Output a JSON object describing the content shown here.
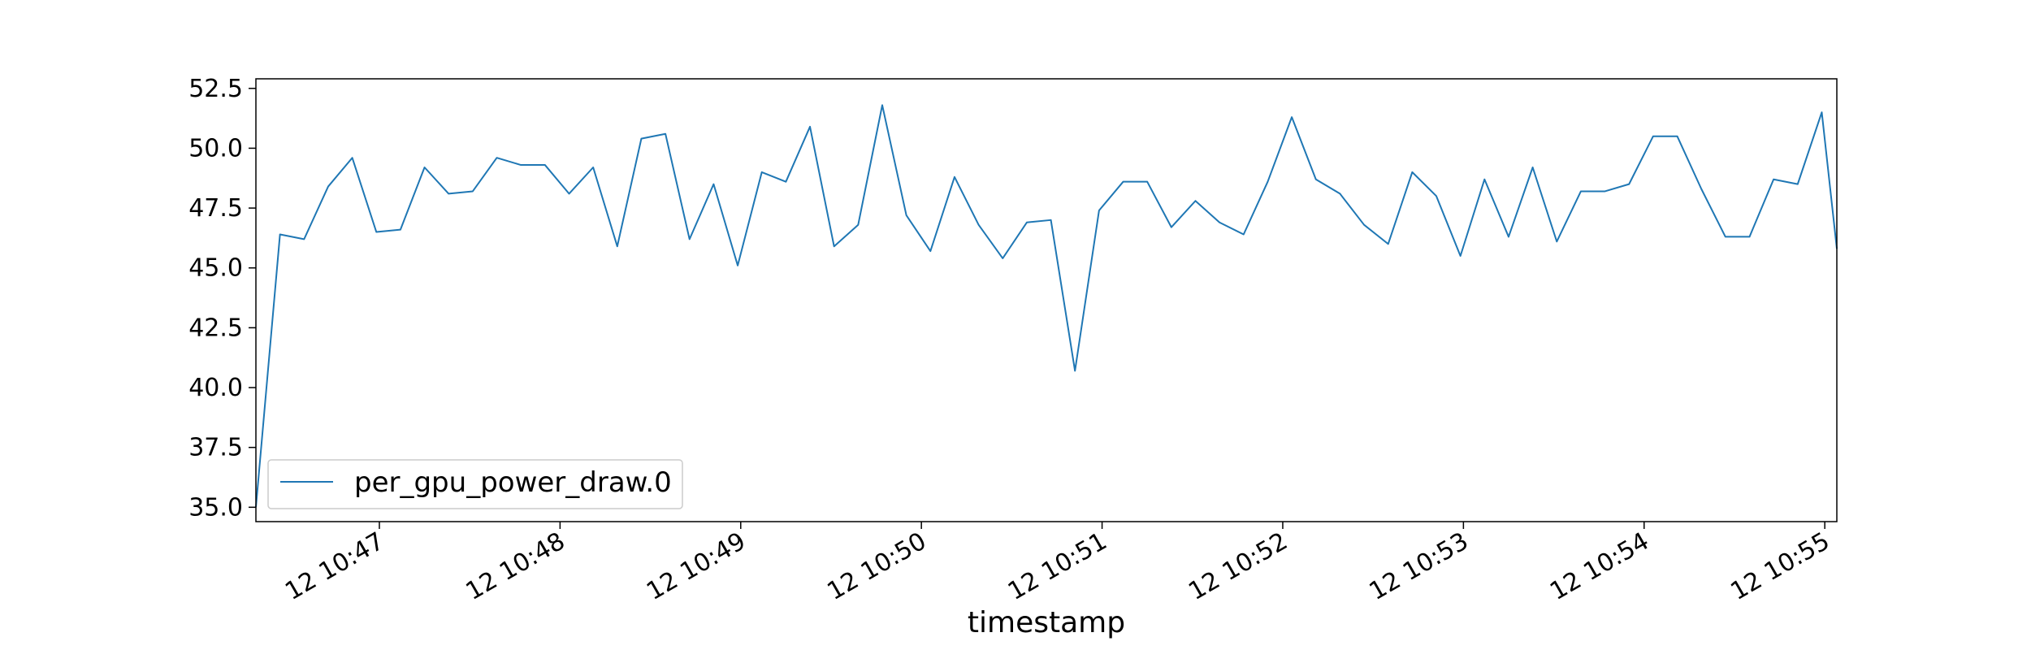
{
  "chart_data": {
    "type": "line",
    "title": "",
    "xlabel": "timestamp",
    "ylabel": "",
    "x_type": "time",
    "xlim": [
      "12 10:46:19",
      "12 10:55:04"
    ],
    "ylim": [
      34.4,
      52.9
    ],
    "y_ticks": [
      35.0,
      37.5,
      40.0,
      42.5,
      45.0,
      47.5,
      50.0,
      52.5
    ],
    "x_ticks": [
      {
        "time": "12 10:47:00",
        "label": "12 10:47"
      },
      {
        "time": "12 10:48:00",
        "label": "12 10:48"
      },
      {
        "time": "12 10:49:00",
        "label": "12 10:49"
      },
      {
        "time": "12 10:50:00",
        "label": "12 10:50"
      },
      {
        "time": "12 10:51:00",
        "label": "12 10:51"
      },
      {
        "time": "12 10:52:00",
        "label": "12 10:52"
      },
      {
        "time": "12 10:53:00",
        "label": "12 10:53"
      },
      {
        "time": "12 10:54:00",
        "label": "12 10:54"
      },
      {
        "time": "12 10:55:00",
        "label": "12 10:55"
      }
    ],
    "grid": false,
    "legend": {
      "position": "lower-left",
      "entries": [
        "per_gpu_power_draw.0"
      ]
    },
    "series": [
      {
        "name": "per_gpu_power_draw.0",
        "color": "#1f77b4",
        "x": [
          "12 10:46:19",
          "12 10:46:27",
          "12 10:46:35",
          "12 10:46:43",
          "12 10:46:51",
          "12 10:46:59",
          "12 10:47:07",
          "12 10:47:15",
          "12 10:47:23",
          "12 10:47:31",
          "12 10:47:39",
          "12 10:47:47",
          "12 10:47:55",
          "12 10:48:03",
          "12 10:48:11",
          "12 10:48:19",
          "12 10:48:27",
          "12 10:48:35",
          "12 10:48:43",
          "12 10:48:51",
          "12 10:48:59",
          "12 10:49:07",
          "12 10:49:15",
          "12 10:49:23",
          "12 10:49:31",
          "12 10:49:39",
          "12 10:49:47",
          "12 10:49:55",
          "12 10:50:03",
          "12 10:50:11",
          "12 10:50:19",
          "12 10:50:27",
          "12 10:50:35",
          "12 10:50:43",
          "12 10:50:51",
          "12 10:50:59",
          "12 10:51:07",
          "12 10:51:15",
          "12 10:51:23",
          "12 10:51:31",
          "12 10:51:39",
          "12 10:51:47",
          "12 10:51:55",
          "12 10:52:03",
          "12 10:52:11",
          "12 10:52:19",
          "12 10:52:27",
          "12 10:52:35",
          "12 10:52:43",
          "12 10:52:51",
          "12 10:52:59",
          "12 10:53:07",
          "12 10:53:15",
          "12 10:53:23",
          "12 10:53:31",
          "12 10:53:39",
          "12 10:53:47",
          "12 10:53:55",
          "12 10:54:03",
          "12 10:54:11",
          "12 10:54:19",
          "12 10:54:27",
          "12 10:54:35",
          "12 10:54:43",
          "12 10:54:51",
          "12 10:54:59",
          "12 10:55:04"
        ],
        "y": [
          35.0,
          46.4,
          46.2,
          48.4,
          49.6,
          46.5,
          46.6,
          49.2,
          48.1,
          48.2,
          49.6,
          49.3,
          49.3,
          48.1,
          49.2,
          45.9,
          50.4,
          50.6,
          46.2,
          48.5,
          45.1,
          49.0,
          48.6,
          50.9,
          45.9,
          46.8,
          51.8,
          47.2,
          45.7,
          48.8,
          46.8,
          45.4,
          46.9,
          47.0,
          40.7,
          47.4,
          48.6,
          48.6,
          46.7,
          47.8,
          46.9,
          46.4,
          48.6,
          51.3,
          48.7,
          48.1,
          46.8,
          46.0,
          49.0,
          48.0,
          45.5,
          48.7,
          46.3,
          49.2,
          46.1,
          48.2,
          48.2,
          48.5,
          50.5,
          50.5,
          48.3,
          46.3,
          46.3,
          48.7,
          48.5,
          51.5,
          45.8
        ]
      }
    ]
  }
}
